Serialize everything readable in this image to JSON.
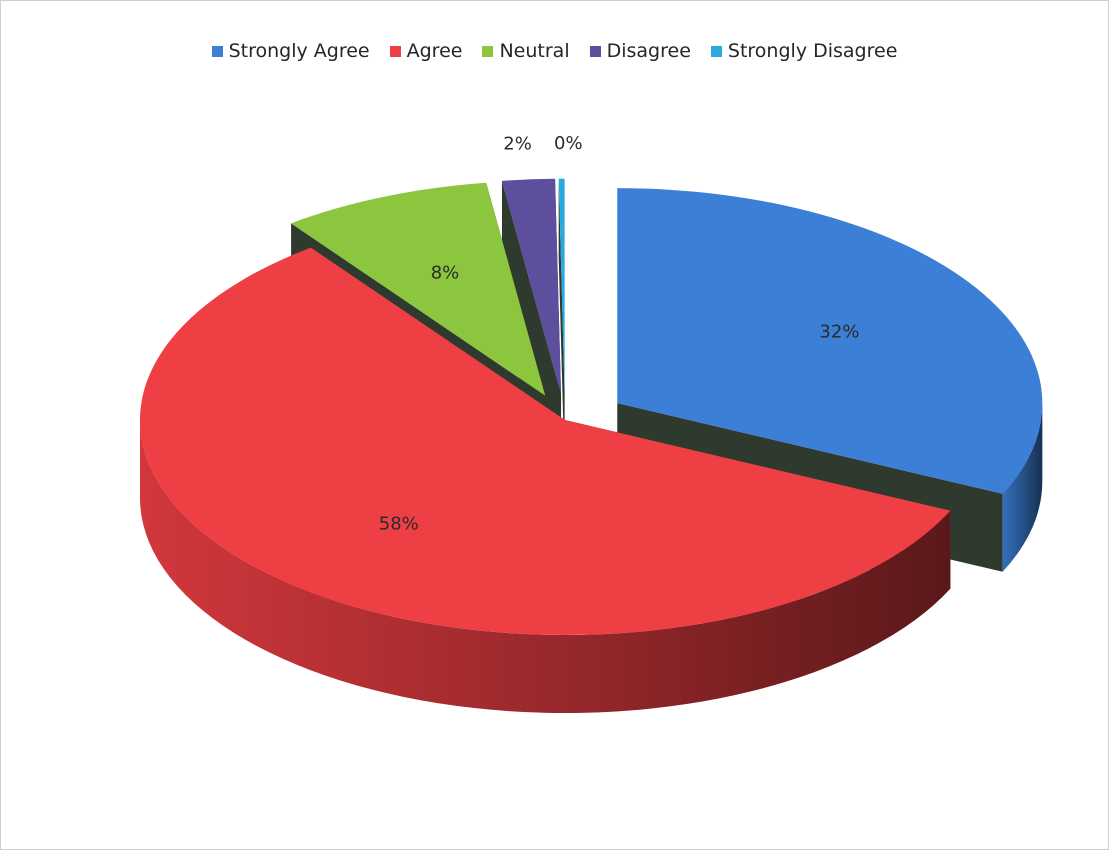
{
  "chart_data": {
    "type": "pie",
    "title": "",
    "categories": [
      "Strongly Agree",
      "Agree",
      "Neutral",
      "Disagree",
      "Strongly Disagree"
    ],
    "values": [
      32,
      58,
      8,
      2,
      0
    ],
    "value_labels": [
      "32%",
      "58%",
      "8%",
      "2%",
      "0%"
    ],
    "colors": [
      "#3b7fd6",
      "#ee3f44",
      "#8cc63f",
      "#5d4e9e",
      "#2aa9e0"
    ],
    "legend_position": "top",
    "style": "3d-exploded"
  }
}
